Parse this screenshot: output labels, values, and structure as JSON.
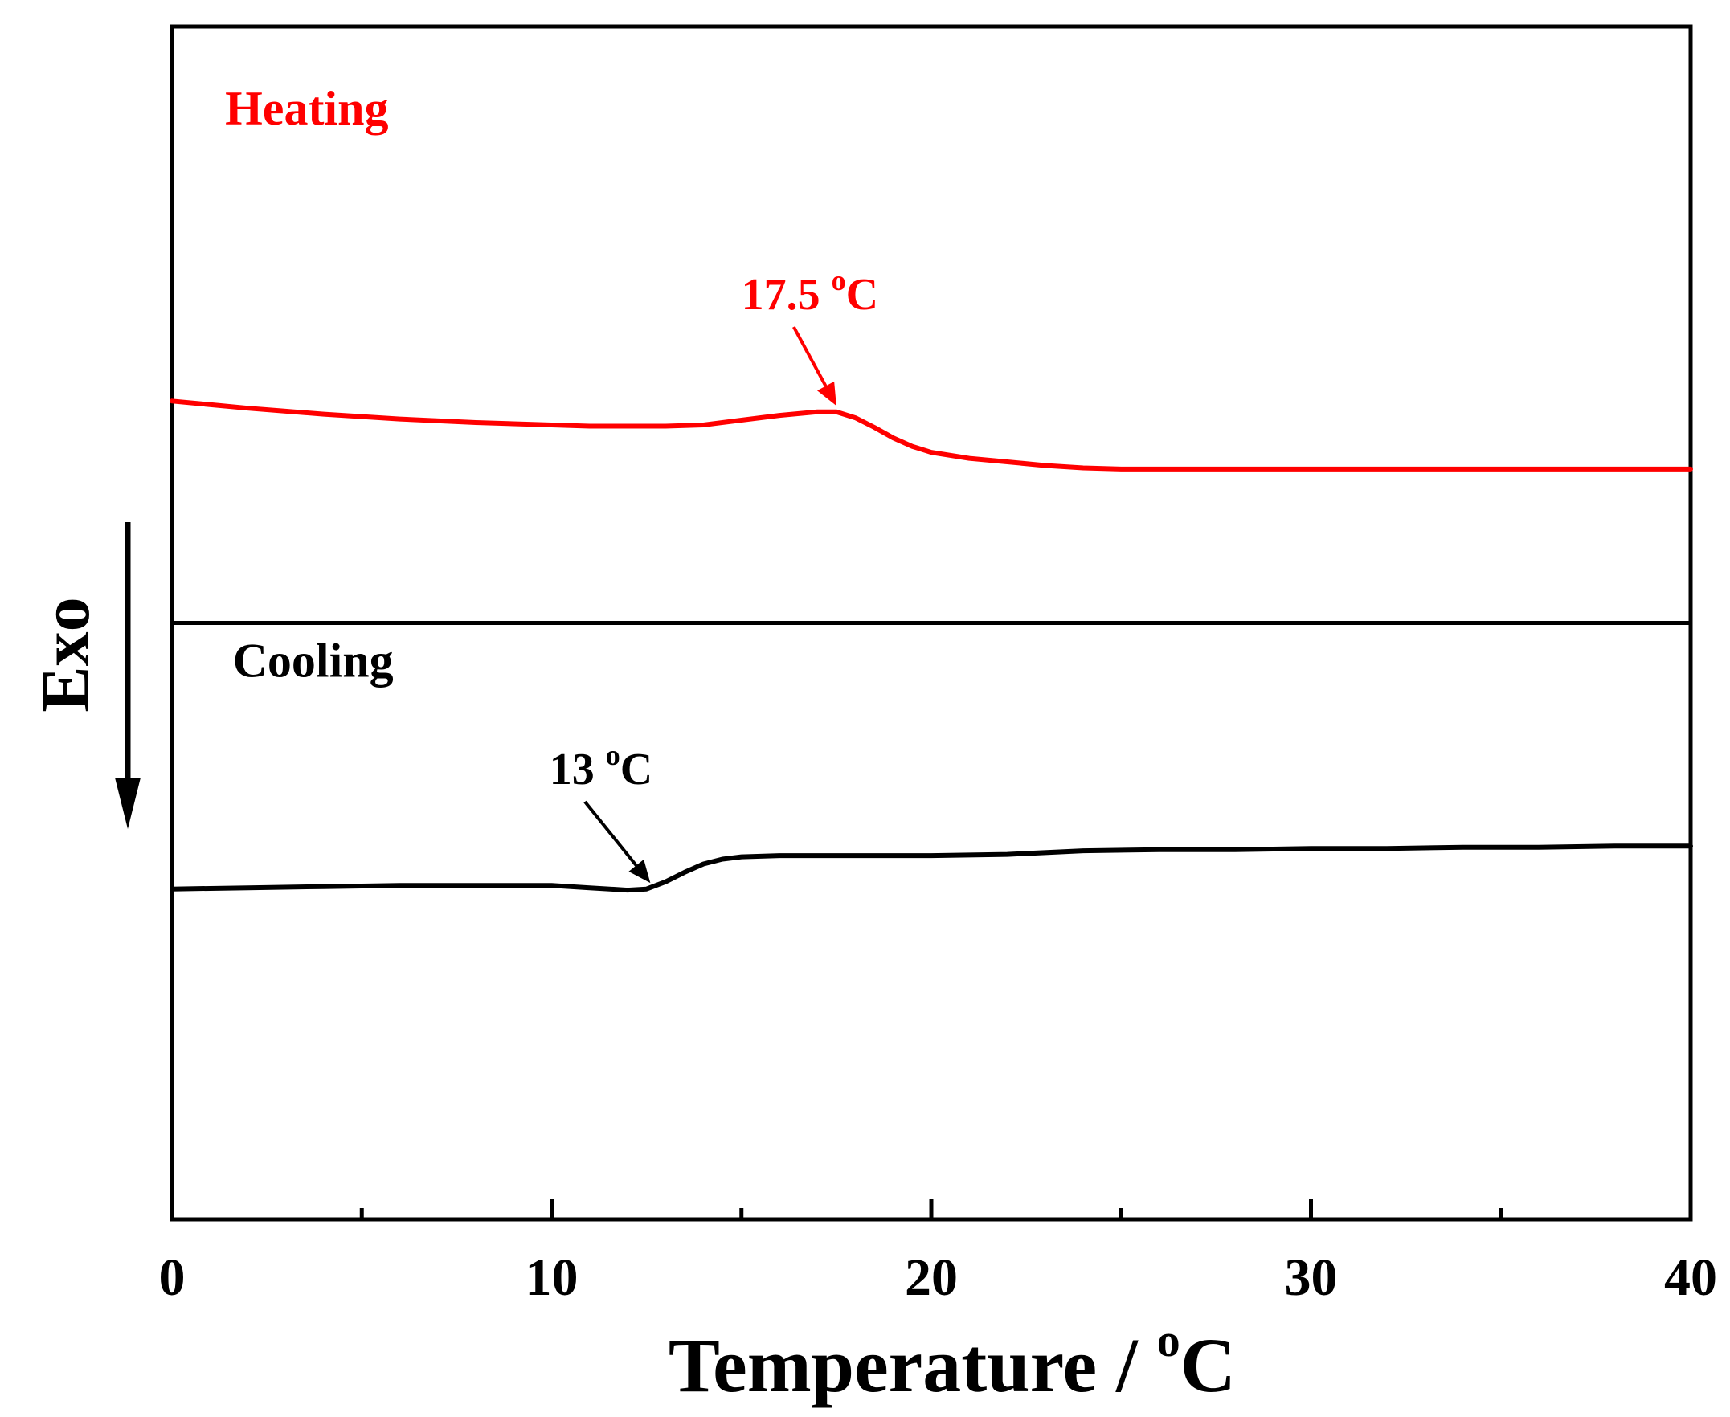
{
  "chart_data": {
    "type": "line",
    "title": "",
    "xlabel": "Temperature / °C",
    "xlabel_main": "Temperature / ",
    "xlabel_sup": "o",
    "xlabel_unit": "C",
    "ylabel": "Exo",
    "xlim": [
      0,
      40
    ],
    "ylim": [
      0,
      100
    ],
    "xticks": [
      0,
      10,
      20,
      30,
      40
    ],
    "xtick_labels": [
      "0",
      "10",
      "20",
      "30",
      "40"
    ],
    "minor_xticks": [
      5,
      15,
      25,
      35
    ],
    "divider_y": 50,
    "grid": false,
    "series": [
      {
        "name": "Heating",
        "color": "#ff0000",
        "x": [
          0,
          2,
          4,
          6,
          8,
          10,
          11,
          12,
          13,
          14,
          15,
          16,
          17,
          17.5,
          18,
          18.5,
          19,
          19.5,
          20,
          21,
          22,
          23,
          24,
          25,
          27,
          29,
          31,
          33,
          35,
          37,
          39,
          40
        ],
        "y": [
          68.6,
          68.0,
          67.5,
          67.1,
          66.8,
          66.6,
          66.5,
          66.5,
          66.5,
          66.6,
          67.0,
          67.4,
          67.7,
          67.7,
          67.2,
          66.4,
          65.5,
          64.8,
          64.3,
          63.8,
          63.5,
          63.2,
          63.0,
          62.9,
          62.9,
          62.9,
          62.9,
          62.9,
          62.9,
          62.9,
          62.9,
          62.9
        ]
      },
      {
        "name": "Cooling",
        "color": "#000000",
        "x": [
          0,
          2,
          4,
          6,
          8,
          10,
          11,
          12,
          12.5,
          13,
          13.5,
          14,
          14.5,
          15,
          16,
          18,
          20,
          22,
          24,
          26,
          28,
          30,
          32,
          34,
          36,
          38,
          40
        ],
        "y": [
          27.7,
          27.8,
          27.9,
          28.0,
          28.0,
          28.0,
          27.8,
          27.6,
          27.7,
          28.3,
          29.1,
          29.8,
          30.2,
          30.4,
          30.5,
          30.5,
          30.5,
          30.6,
          30.9,
          31.0,
          31.0,
          31.1,
          31.1,
          31.2,
          31.2,
          31.3,
          31.3
        ]
      }
    ],
    "annotations": [
      {
        "series": "Heating",
        "label": "Heating",
        "x": 1.4,
        "y": 91.8
      },
      {
        "series": "Heating",
        "text_main": "17.5 ",
        "text_sup": "o",
        "text_unit": "C",
        "x_point": 17.5,
        "y_point": 67.8,
        "x_text": 16.8,
        "y_text": 76.3
      },
      {
        "series": "Cooling",
        "label": "Cooling",
        "x": 1.6,
        "y": 45.5
      },
      {
        "series": "Cooling",
        "text_main": "13 ",
        "text_sup": "o",
        "text_unit": "C",
        "x_point": 12.6,
        "y_point": 27.8,
        "x_text": 11.3,
        "y_text": 36.5
      }
    ]
  }
}
